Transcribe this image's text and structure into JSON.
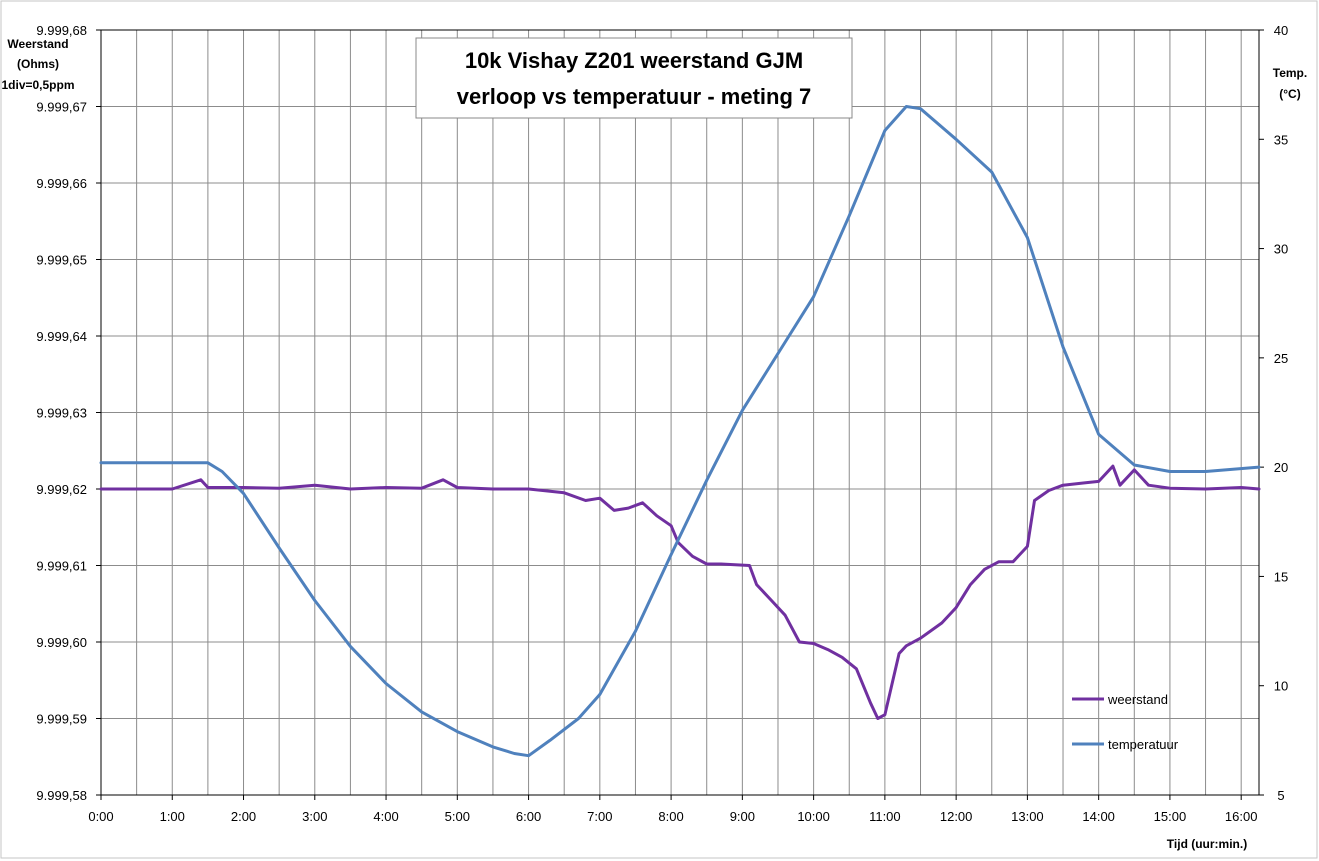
{
  "chart_data": {
    "type": "line",
    "title": "10k Vishay  Z201 weerstand GJM",
    "subtitle": "verloop vs temperatuur  - meting 7",
    "xlabel": "Tijd (uur:min.)",
    "ylabel_left": [
      "Weerstand",
      "(Ohms)",
      "1div=0,5ppm"
    ],
    "ylabel_right": [
      "Temp.",
      "(°C)"
    ],
    "x_unit": "hours",
    "xlim": [
      0,
      16.25
    ],
    "x_tick_labels": [
      "0:00",
      "1:00",
      "2:00",
      "3:00",
      "4:00",
      "5:00",
      "6:00",
      "7:00",
      "8:00",
      "9:00",
      "10:00",
      "11:00",
      "12:00",
      "13:00",
      "14:00",
      "15:00",
      "16:00"
    ],
    "ylim_left": [
      9999.58,
      9999.68
    ],
    "y_left_tick_labels": [
      "9.999,58",
      "9.999,59",
      "9.999,60",
      "9.999,61",
      "9.999,62",
      "9.999,63",
      "9.999,64",
      "9.999,65",
      "9.999,66",
      "9.999,67",
      "9.999,68"
    ],
    "ylim_right": [
      5,
      40
    ],
    "y_right_tick_labels": [
      "5",
      "10",
      "15",
      "20",
      "25",
      "30",
      "35",
      "40"
    ],
    "grid": true,
    "legend_position": "bottom-right",
    "series": [
      {
        "name": "weerstand",
        "axis": "left",
        "color": "#7030A0",
        "x": [
          0,
          0.5,
          1,
          1.4,
          1.5,
          2,
          2.5,
          3,
          3.5,
          4,
          4.5,
          4.8,
          5,
          5.5,
          6,
          6.5,
          6.8,
          7,
          7.2,
          7.4,
          7.6,
          7.8,
          8,
          8.1,
          8.3,
          8.5,
          8.7,
          8.9,
          9.1,
          9.2,
          9.4,
          9.6,
          9.8,
          10,
          10.2,
          10.4,
          10.6,
          10.8,
          10.9,
          11,
          11.2,
          11.3,
          11.5,
          11.8,
          12,
          12.2,
          12.4,
          12.6,
          12.8,
          13,
          13.1,
          13.3,
          13.5,
          13.8,
          14,
          14.2,
          14.3,
          14.5,
          14.7,
          15,
          15.5,
          16,
          16.25
        ],
        "values": [
          9999.62,
          9999.62,
          9999.62,
          9999.6212,
          9999.6202,
          9999.6202,
          9999.6201,
          9999.6205,
          9999.62,
          9999.6202,
          9999.6201,
          9999.6212,
          9999.6202,
          9999.62,
          9999.62,
          9999.6195,
          9999.6185,
          9999.6188,
          9999.6172,
          9999.6175,
          9999.6182,
          9999.6165,
          9999.6152,
          9999.613,
          9999.6112,
          9999.6102,
          9999.6102,
          9999.6101,
          9999.61,
          9999.6075,
          9999.6055,
          9999.6035,
          9999.6,
          9999.5998,
          9999.599,
          9999.598,
          9999.5965,
          9999.592,
          9999.59,
          9999.5905,
          9999.5985,
          9999.5995,
          9999.6005,
          9999.6025,
          9999.6045,
          9999.6075,
          9999.6095,
          9999.6105,
          9999.6105,
          9999.6125,
          9999.6185,
          9999.6198,
          9999.6205,
          9999.6208,
          9999.621,
          9999.623,
          9999.6205,
          9999.6225,
          9999.6205,
          9999.6201,
          9999.62,
          9999.6202,
          9999.62
        ]
      },
      {
        "name": "temperatuur",
        "axis": "right",
        "color": "#4F81BD",
        "x": [
          0,
          1,
          1.5,
          1.7,
          2,
          2.5,
          3,
          3.5,
          4,
          4.5,
          5,
          5.5,
          5.8,
          6,
          6.3,
          6.7,
          7,
          7.5,
          8,
          8.5,
          9,
          9.5,
          10,
          10.5,
          11,
          11.3,
          11.5,
          12,
          12.5,
          13,
          13.5,
          14,
          14.5,
          15,
          15.5,
          16.25
        ],
        "values": [
          20.2,
          20.2,
          20.2,
          19.8,
          18.8,
          16.3,
          13.9,
          11.8,
          10.1,
          8.8,
          7.9,
          7.2,
          6.9,
          6.8,
          7.5,
          8.5,
          9.6,
          12.5,
          16,
          19.4,
          22.6,
          25.2,
          27.8,
          31.5,
          35.4,
          36.5,
          36.4,
          35,
          33.5,
          30.5,
          25.5,
          21.5,
          20.1,
          19.8,
          19.8,
          20
        ]
      }
    ]
  }
}
